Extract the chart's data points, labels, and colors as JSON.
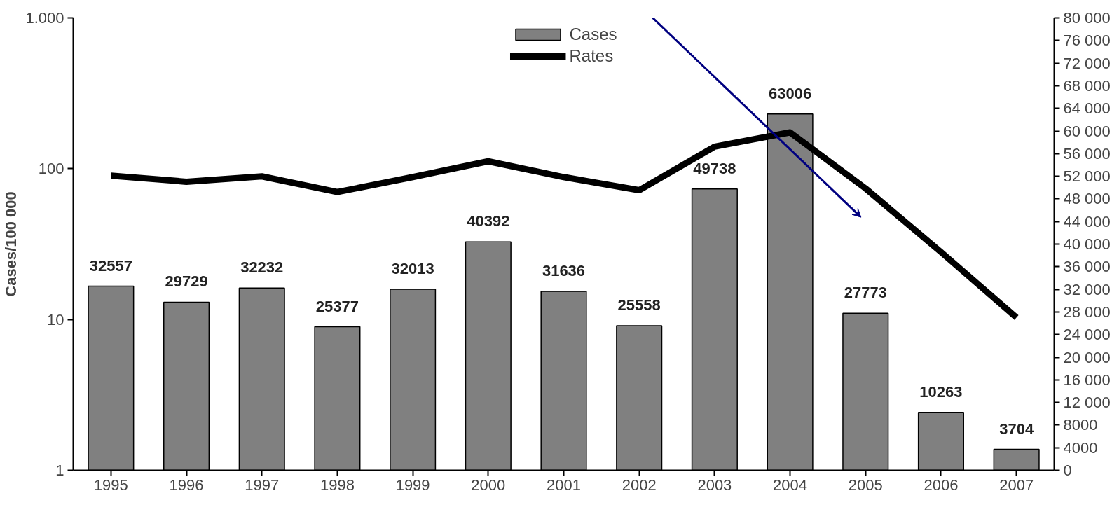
{
  "chart_data": {
    "type": "bar",
    "ylabel": "Cases/100 000",
    "log": "y",
    "legend": "top",
    "grid": false,
    "categories": [
      "1995",
      "1996",
      "1997",
      "1998",
      "1999",
      "2000",
      "2001",
      "2002",
      "2003",
      "2004",
      "2005",
      "2006",
      "2007"
    ],
    "series": [
      {
        "name": "Cases",
        "axis": "y2",
        "color": "#808080",
        "data_labels": true,
        "values": [
          32557,
          29729,
          32232,
          25377,
          32013,
          40392,
          31636,
          25558,
          49738,
          63006,
          27773,
          10263,
          3704
        ]
      },
      {
        "name": "Rates",
        "type": "line",
        "axis": "y",
        "color": "#000000",
        "line_style": "solid",
        "marker": "none",
        "values": [
          90,
          82,
          89,
          70,
          88,
          112,
          88,
          72,
          140,
          174,
          74,
          28,
          10.3
        ]
      }
    ],
    "ylim": [
      1,
      1000
    ],
    "yticks": [
      1,
      10,
      100,
      {
        "value": 1000,
        "label": "1.000"
      }
    ],
    "y2lim": [
      0,
      80000
    ],
    "y2ticks": [
      0,
      4000,
      8000,
      {
        "value": 12000,
        "label": "12 000"
      },
      {
        "value": 16000,
        "label": "16 000"
      },
      {
        "value": 20000,
        "label": "20 000"
      },
      {
        "value": 24000,
        "label": "24 000"
      },
      {
        "value": 28000,
        "label": "28 000"
      },
      {
        "value": 32000,
        "label": "32 000"
      },
      {
        "value": 36000,
        "label": "36 000"
      },
      {
        "value": 40000,
        "label": "40 000"
      },
      {
        "value": 44000,
        "label": "44 000"
      },
      {
        "value": 48000,
        "label": "48 000"
      },
      {
        "value": 52000,
        "label": "52 000"
      },
      {
        "value": 56000,
        "label": "56 000"
      },
      {
        "value": 60000,
        "label": "60 000"
      },
      {
        "value": 64000,
        "label": "64 000"
      },
      {
        "value": 68000,
        "label": "68 000"
      },
      {
        "value": 72000,
        "label": "72 000"
      },
      {
        "value": 76000,
        "label": "76 000"
      },
      {
        "value": 80000,
        "label": "80 000"
      }
    ]
  }
}
